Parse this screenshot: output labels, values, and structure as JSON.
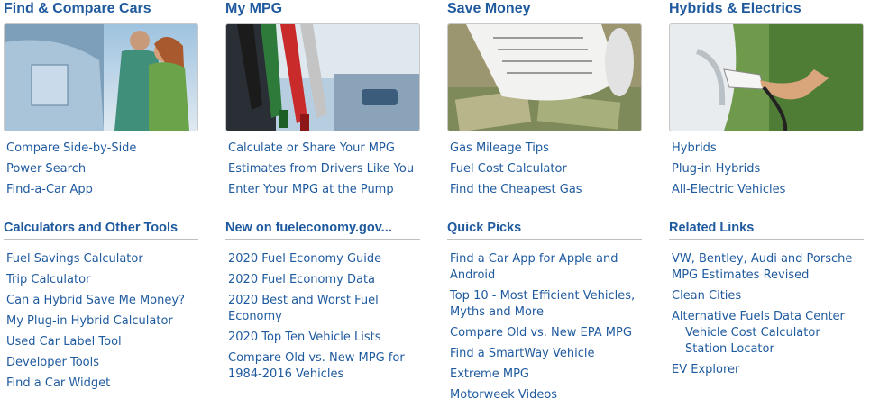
{
  "columns": [
    {
      "heading": "Find & Compare Cars",
      "links": [
        "Compare Side-by-Side",
        "Power Search",
        "Find-a-Car App"
      ],
      "section_heading": "Calculators and Other Tools",
      "section_links": [
        "Fuel Savings Calculator",
        "Trip Calculator",
        "Can a Hybrid Save Me Money?",
        "My Plug-in Hybrid Calculator",
        "Used Car Label Tool",
        "Developer Tools",
        "Find a Car Widget"
      ]
    },
    {
      "heading": "My MPG",
      "links": [
        "Calculate or Share Your MPG",
        "Estimates from Drivers Like You",
        "Enter Your MPG at the Pump"
      ],
      "section_heading": "New on fueleconomy.gov...",
      "section_links": [
        "2020 Fuel Economy Guide",
        "2020 Fuel Economy Data",
        "2020 Best and Worst Fuel Economy",
        "2020 Top Ten Vehicle Lists",
        "Compare Old vs. New MPG for 1984-2016 Vehicles"
      ]
    },
    {
      "heading": "Save Money",
      "links": [
        "Gas Mileage Tips",
        "Fuel Cost Calculator",
        "Find the Cheapest Gas"
      ],
      "section_heading": "Quick Picks",
      "section_links": [
        "Find a Car App for Apple and Android",
        "Top 10 - Most Efficient Vehicles, Myths and More",
        "Compare Old vs. New EPA MPG",
        "Find a SmartWay Vehicle",
        "Extreme MPG",
        "Motorweek Videos"
      ]
    },
    {
      "heading": "Hybrids & Electrics",
      "links": [
        "Hybrids",
        "Plug-in Hybrids",
        "All-Electric Vehicles"
      ],
      "section_heading": "Related Links",
      "section_links": [
        "VW, Bentley, Audi and Porsche MPG Estimates Revised",
        "Clean Cities",
        "Alternative Fuels Data Center",
        "Vehicle Cost Calculator",
        "Station Locator",
        "EV Explorer"
      ]
    }
  ],
  "colors": {
    "link": "#1f5a9e",
    "heading": "#1f5a9e",
    "divider": "#c0c0c0"
  }
}
